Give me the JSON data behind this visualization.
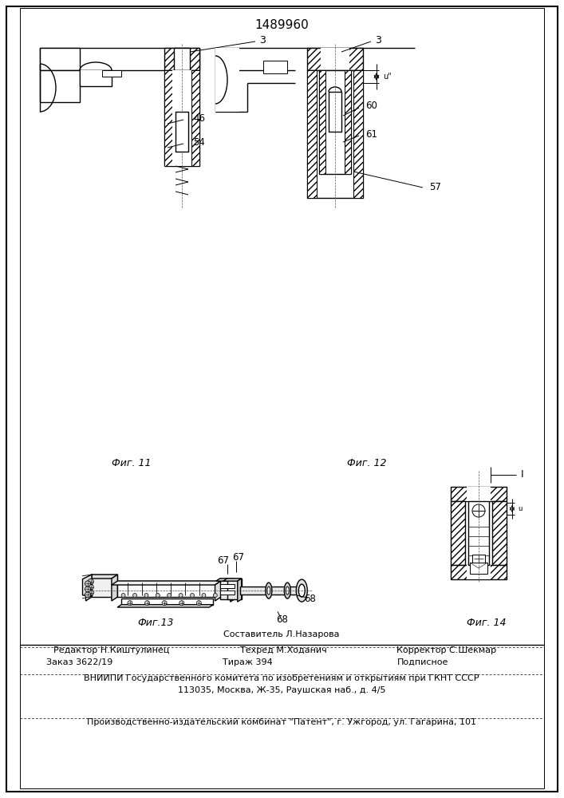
{
  "patent_number": "1489960",
  "background_color": "#ffffff",
  "footer": {
    "line1_composer": "Составитель Л.Назарова",
    "line2_editor": "Редактор Н.Киштулинец",
    "line2_tech": "Техред М.Ходанич",
    "line2_corrector": "Корректор С.Шекмар",
    "line3_order": "Заказ 3622/19",
    "line3_tirazh": "Тираж 394",
    "line3_podp": "Подписное",
    "line4": "ВНИИПИ Государственного комитета по изобретениям и открытиям при ГКНТ СССР",
    "line5": "113035, Москва, Ж-35, Раушская наб., д. 4/5",
    "line6": "Производственно-издательский комбинат \"Патент\", г. Ужгород, ул. Гагарина, 101"
  },
  "fig11_caption": "Фиг. 11",
  "fig12_caption": "Фиг. 12",
  "fig13_caption": "Фиг.13",
  "fig14_caption": "Фиг. 14"
}
